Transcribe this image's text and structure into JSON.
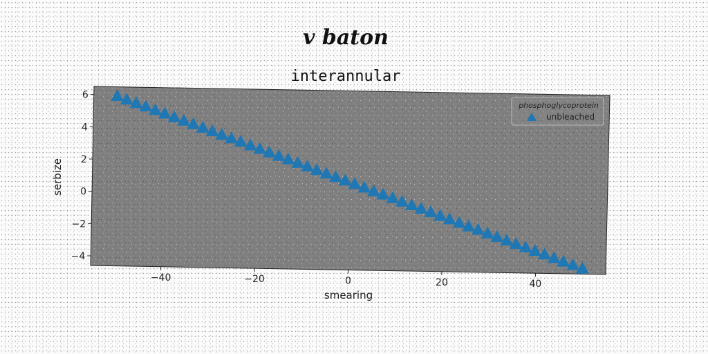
{
  "chart_data": {
    "type": "scatter",
    "suptitle": "v baton",
    "title": "interannular",
    "xlabel": "smearing",
    "ylabel": "serbize",
    "xlim": [
      -55,
      55
    ],
    "ylim": [
      -4.6,
      6.5
    ],
    "xticks": [
      -40,
      -20,
      0,
      20,
      40
    ],
    "xtick_labels": [
      "−40",
      "−20",
      "0",
      "20",
      "40"
    ],
    "yticks": [
      -4,
      -2,
      0,
      2,
      4,
      6
    ],
    "ytick_labels": [
      "−4",
      "−2",
      "0",
      "2",
      "4",
      "6"
    ],
    "grid": false,
    "legend": {
      "title": "phosphoglycoprotein",
      "placement": "top-right"
    },
    "series": [
      {
        "name": "unbleached",
        "marker": "triangle-up",
        "color": "#1f77b4",
        "x": [
          -50,
          -47.96,
          -45.92,
          -43.88,
          -41.84,
          -39.8,
          -37.76,
          -35.71,
          -33.67,
          -31.63,
          -29.59,
          -27.55,
          -25.51,
          -23.47,
          -21.43,
          -19.39,
          -17.35,
          -15.31,
          -13.27,
          -11.22,
          -9.18,
          -7.14,
          -5.1,
          -3.06,
          -1.02,
          1.02,
          3.06,
          5.1,
          7.14,
          9.18,
          11.22,
          13.27,
          15.31,
          17.35,
          19.39,
          21.43,
          23.47,
          25.51,
          27.55,
          29.59,
          31.63,
          33.67,
          35.71,
          37.76,
          39.8,
          41.84,
          43.88,
          45.92,
          47.96,
          50
        ],
        "y": [
          5.9,
          5.69,
          5.48,
          5.28,
          5.07,
          4.86,
          4.65,
          4.44,
          4.24,
          4.03,
          3.82,
          3.61,
          3.4,
          3.2,
          2.99,
          2.78,
          2.57,
          2.36,
          2.16,
          1.95,
          1.74,
          1.53,
          1.32,
          1.12,
          0.91,
          0.7,
          0.49,
          0.28,
          0.08,
          -0.13,
          -0.34,
          -0.55,
          -0.76,
          -0.96,
          -1.17,
          -1.38,
          -1.59,
          -1.8,
          -2,
          -2.21,
          -2.42,
          -2.63,
          -2.84,
          -3.04,
          -3.25,
          -3.46,
          -3.67,
          -3.88,
          -4.08,
          -4.29
        ]
      }
    ]
  }
}
